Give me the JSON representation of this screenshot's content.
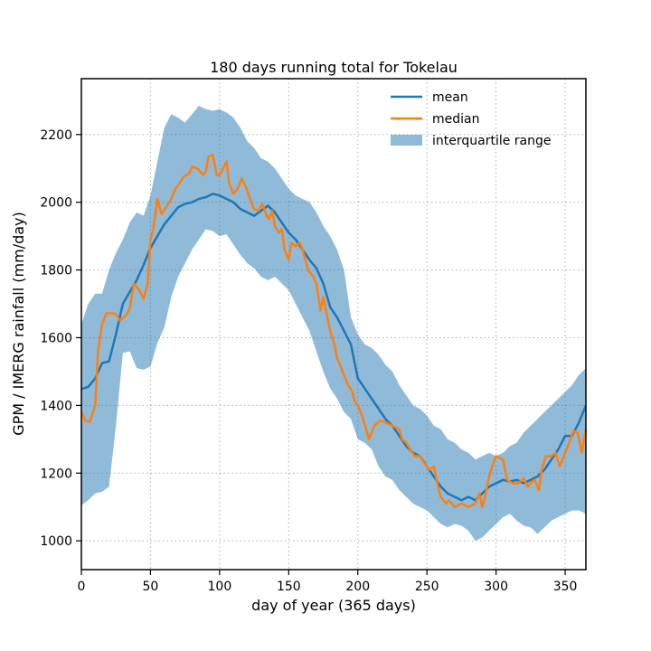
{
  "chart_data": {
    "type": "line",
    "title": "180 days running total for Tokelau",
    "xlabel": "day of year (365 days)",
    "ylabel": "GPM / IMERG rainfall (mm/day)",
    "xlim": [
      0,
      365
    ],
    "ylim": [
      915,
      2365
    ],
    "xticks": [
      0,
      50,
      100,
      150,
      200,
      250,
      300,
      350
    ],
    "yticks": [
      1000,
      1200,
      1400,
      1600,
      1800,
      2000,
      2200
    ],
    "grid": true,
    "legend_position": "top-right",
    "colors": {
      "mean": "#1f77b4",
      "median": "#ff7f0e",
      "iqr": "#1f77b4"
    },
    "series": [
      {
        "name": "mean",
        "kind": "line",
        "points": [
          [
            0,
            1448
          ],
          [
            5,
            1455
          ],
          [
            10,
            1480
          ],
          [
            15,
            1525
          ],
          [
            20,
            1530
          ],
          [
            25,
            1610
          ],
          [
            30,
            1700
          ],
          [
            35,
            1735
          ],
          [
            40,
            1770
          ],
          [
            45,
            1815
          ],
          [
            50,
            1865
          ],
          [
            55,
            1900
          ],
          [
            60,
            1935
          ],
          [
            65,
            1960
          ],
          [
            70,
            1985
          ],
          [
            75,
            1995
          ],
          [
            80,
            2000
          ],
          [
            85,
            2010
          ],
          [
            90,
            2015
          ],
          [
            95,
            2025
          ],
          [
            100,
            2020
          ],
          [
            105,
            2010
          ],
          [
            110,
            2000
          ],
          [
            115,
            1980
          ],
          [
            120,
            1970
          ],
          [
            125,
            1960
          ],
          [
            130,
            1975
          ],
          [
            135,
            1990
          ],
          [
            140,
            1970
          ],
          [
            145,
            1940
          ],
          [
            150,
            1910
          ],
          [
            155,
            1890
          ],
          [
            160,
            1860
          ],
          [
            165,
            1830
          ],
          [
            170,
            1805
          ],
          [
            175,
            1760
          ],
          [
            180,
            1690
          ],
          [
            185,
            1660
          ],
          [
            190,
            1620
          ],
          [
            195,
            1580
          ],
          [
            200,
            1480
          ],
          [
            205,
            1450
          ],
          [
            210,
            1420
          ],
          [
            215,
            1390
          ],
          [
            220,
            1360
          ],
          [
            225,
            1340
          ],
          [
            230,
            1310
          ],
          [
            235,
            1280
          ],
          [
            240,
            1260
          ],
          [
            245,
            1250
          ],
          [
            250,
            1220
          ],
          [
            255,
            1190
          ],
          [
            260,
            1160
          ],
          [
            265,
            1140
          ],
          [
            270,
            1130
          ],
          [
            275,
            1120
          ],
          [
            280,
            1130
          ],
          [
            285,
            1120
          ],
          [
            290,
            1140
          ],
          [
            295,
            1160
          ],
          [
            300,
            1170
          ],
          [
            305,
            1180
          ],
          [
            310,
            1175
          ],
          [
            315,
            1180
          ],
          [
            320,
            1170
          ],
          [
            325,
            1180
          ],
          [
            330,
            1190
          ],
          [
            335,
            1210
          ],
          [
            340,
            1240
          ],
          [
            345,
            1270
          ],
          [
            350,
            1310
          ],
          [
            355,
            1310
          ],
          [
            360,
            1350
          ],
          [
            365,
            1400
          ]
        ]
      },
      {
        "name": "median",
        "kind": "line",
        "points": [
          [
            0,
            1380
          ],
          [
            3,
            1355
          ],
          [
            6,
            1350
          ],
          [
            10,
            1400
          ],
          [
            12,
            1560
          ],
          [
            15,
            1640
          ],
          [
            18,
            1672
          ],
          [
            22,
            1672
          ],
          [
            25,
            1670
          ],
          [
            28,
            1650
          ],
          [
            32,
            1665
          ],
          [
            35,
            1685
          ],
          [
            38,
            1760
          ],
          [
            42,
            1740
          ],
          [
            45,
            1715
          ],
          [
            48,
            1760
          ],
          [
            50,
            1890
          ],
          [
            52,
            1920
          ],
          [
            55,
            2010
          ],
          [
            58,
            1965
          ],
          [
            62,
            1990
          ],
          [
            65,
            2010
          ],
          [
            68,
            2040
          ],
          [
            70,
            2050
          ],
          [
            74,
            2075
          ],
          [
            78,
            2085
          ],
          [
            80,
            2105
          ],
          [
            84,
            2100
          ],
          [
            88,
            2080
          ],
          [
            90,
            2090
          ],
          [
            92,
            2135
          ],
          [
            95,
            2140
          ],
          [
            98,
            2080
          ],
          [
            100,
            2080
          ],
          [
            105,
            2120
          ],
          [
            107,
            2055
          ],
          [
            110,
            2025
          ],
          [
            113,
            2040
          ],
          [
            116,
            2070
          ],
          [
            119,
            2045
          ],
          [
            122,
            2010
          ],
          [
            125,
            1980
          ],
          [
            128,
            1975
          ],
          [
            131,
            1995
          ],
          [
            134,
            1960
          ],
          [
            136,
            1950
          ],
          [
            138,
            1975
          ],
          [
            140,
            1930
          ],
          [
            143,
            1910
          ],
          [
            145,
            1920
          ],
          [
            147,
            1860
          ],
          [
            150,
            1830
          ],
          [
            152,
            1880
          ],
          [
            155,
            1870
          ],
          [
            158,
            1880
          ],
          [
            160,
            1860
          ],
          [
            164,
            1800
          ],
          [
            168,
            1780
          ],
          [
            170,
            1760
          ],
          [
            173,
            1680
          ],
          [
            175,
            1720
          ],
          [
            178,
            1660
          ],
          [
            180,
            1620
          ],
          [
            183,
            1580
          ],
          [
            185,
            1540
          ],
          [
            188,
            1510
          ],
          [
            190,
            1490
          ],
          [
            193,
            1460
          ],
          [
            196,
            1440
          ],
          [
            198,
            1410
          ],
          [
            200,
            1400
          ],
          [
            203,
            1370
          ],
          [
            206,
            1330
          ],
          [
            208,
            1300
          ],
          [
            212,
            1340
          ],
          [
            216,
            1355
          ],
          [
            220,
            1350
          ],
          [
            225,
            1340
          ],
          [
            230,
            1330
          ],
          [
            232,
            1300
          ],
          [
            235,
            1290
          ],
          [
            238,
            1270
          ],
          [
            241,
            1250
          ],
          [
            245,
            1250
          ],
          [
            248,
            1230
          ],
          [
            252,
            1210
          ],
          [
            255,
            1220
          ],
          [
            258,
            1160
          ],
          [
            260,
            1130
          ],
          [
            264,
            1110
          ],
          [
            266,
            1120
          ],
          [
            270,
            1100
          ],
          [
            275,
            1110
          ],
          [
            280,
            1100
          ],
          [
            285,
            1110
          ],
          [
            288,
            1140
          ],
          [
            290,
            1100
          ],
          [
            292,
            1130
          ],
          [
            295,
            1190
          ],
          [
            298,
            1230
          ],
          [
            300,
            1250
          ],
          [
            305,
            1240
          ],
          [
            308,
            1180
          ],
          [
            312,
            1170
          ],
          [
            316,
            1170
          ],
          [
            320,
            1185
          ],
          [
            323,
            1160
          ],
          [
            326,
            1175
          ],
          [
            328,
            1180
          ],
          [
            331,
            1150
          ],
          [
            333,
            1210
          ],
          [
            336,
            1250
          ],
          [
            340,
            1250
          ],
          [
            343,
            1260
          ],
          [
            346,
            1220
          ],
          [
            349,
            1250
          ],
          [
            352,
            1280
          ],
          [
            356,
            1325
          ],
          [
            359,
            1320
          ],
          [
            362,
            1260
          ],
          [
            365,
            1330
          ]
        ]
      },
      {
        "name": "interquartile range",
        "kind": "band",
        "x": [
          0,
          5,
          10,
          15,
          20,
          25,
          30,
          35,
          40,
          45,
          50,
          55,
          60,
          65,
          70,
          75,
          80,
          85,
          90,
          95,
          100,
          105,
          110,
          115,
          120,
          125,
          130,
          135,
          140,
          145,
          150,
          155,
          160,
          165,
          170,
          175,
          180,
          185,
          190,
          195,
          200,
          205,
          210,
          215,
          220,
          225,
          230,
          235,
          240,
          245,
          250,
          255,
          260,
          265,
          270,
          275,
          280,
          285,
          290,
          295,
          300,
          305,
          310,
          315,
          320,
          325,
          330,
          335,
          340,
          345,
          350,
          355,
          360,
          365
        ],
        "low": [
          1105,
          1120,
          1140,
          1145,
          1160,
          1340,
          1555,
          1560,
          1510,
          1505,
          1515,
          1585,
          1630,
          1720,
          1780,
          1820,
          1860,
          1890,
          1920,
          1915,
          1900,
          1905,
          1875,
          1845,
          1820,
          1805,
          1780,
          1770,
          1780,
          1760,
          1740,
          1700,
          1660,
          1620,
          1560,
          1500,
          1450,
          1420,
          1380,
          1360,
          1300,
          1290,
          1270,
          1220,
          1190,
          1180,
          1150,
          1130,
          1110,
          1100,
          1090,
          1070,
          1050,
          1040,
          1050,
          1045,
          1030,
          1000,
          1010,
          1030,
          1050,
          1070,
          1080,
          1060,
          1045,
          1040,
          1020,
          1040,
          1060,
          1070,
          1080,
          1090,
          1090,
          1080
        ],
        "high": [
          1640,
          1700,
          1730,
          1730,
          1800,
          1850,
          1890,
          1940,
          1970,
          1960,
          2020,
          2120,
          2220,
          2260,
          2250,
          2235,
          2260,
          2285,
          2275,
          2270,
          2275,
          2265,
          2250,
          2220,
          2180,
          2160,
          2130,
          2120,
          2100,
          2070,
          2040,
          2020,
          2010,
          2000,
          1970,
          1930,
          1900,
          1860,
          1800,
          1660,
          1610,
          1580,
          1570,
          1550,
          1520,
          1500,
          1460,
          1430,
          1400,
          1390,
          1370,
          1340,
          1330,
          1300,
          1290,
          1270,
          1260,
          1240,
          1250,
          1260,
          1250,
          1260,
          1280,
          1290,
          1320,
          1340,
          1360,
          1380,
          1400,
          1420,
          1440,
          1460,
          1490,
          1510
        ]
      }
    ],
    "legend": [
      {
        "label": "mean",
        "kind": "line",
        "color": "#1f77b4"
      },
      {
        "label": "median",
        "kind": "line",
        "color": "#ff7f0e"
      },
      {
        "label": "interquartile range",
        "kind": "patch",
        "color": "#1f77b4"
      }
    ]
  }
}
